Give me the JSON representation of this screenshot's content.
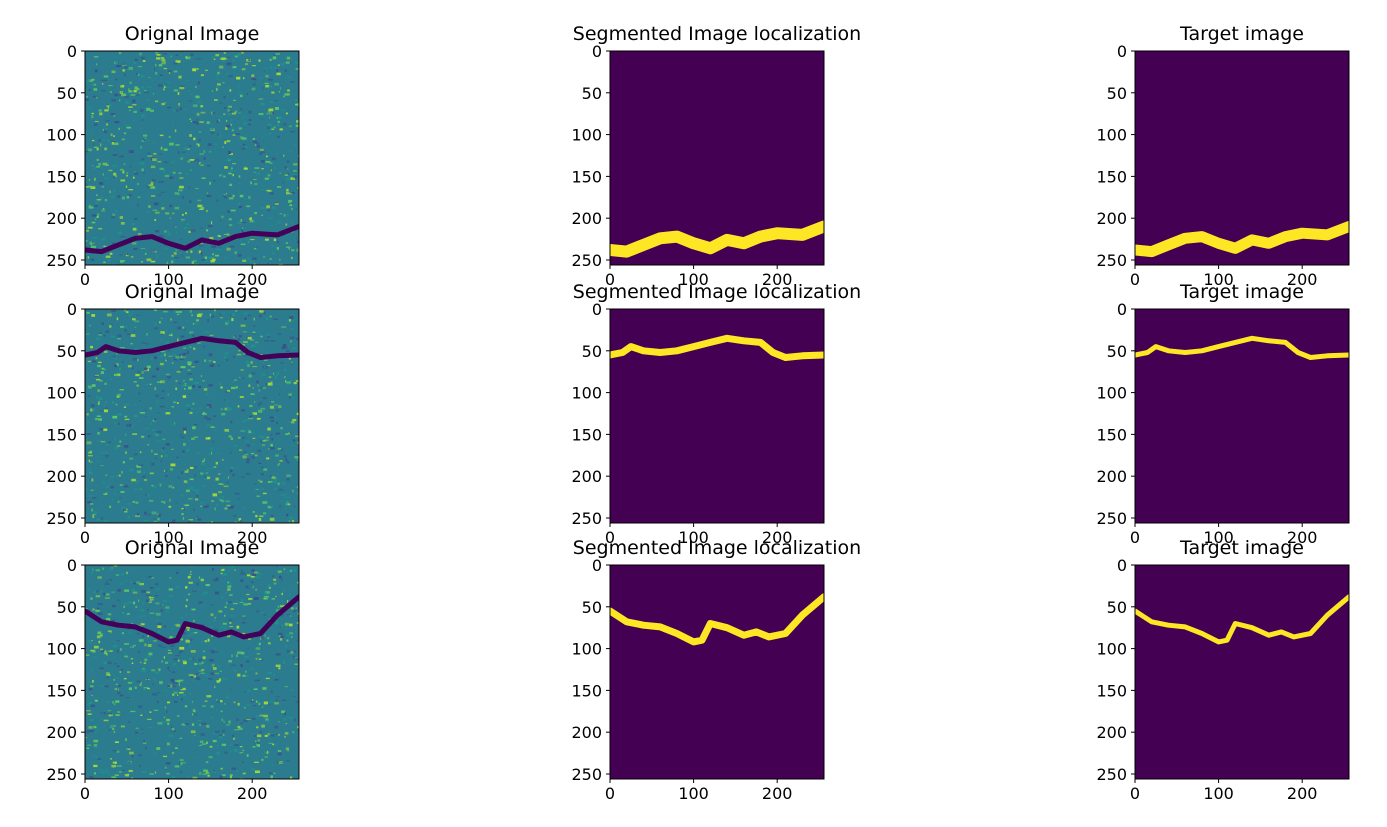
{
  "figure": {
    "rows": [
      {
        "panels": [
          {
            "kind": "original",
            "title": "Orignal Image"
          },
          {
            "kind": "mask",
            "title": "Segmented Image localization"
          },
          {
            "kind": "mask",
            "title": "Target image"
          }
        ]
      },
      {
        "panels": [
          {
            "kind": "original",
            "title": "Orignal Image"
          },
          {
            "kind": "mask",
            "title": "Segmented Image localization"
          },
          {
            "kind": "mask",
            "title": "Target image"
          }
        ]
      },
      {
        "panels": [
          {
            "kind": "original",
            "title": "Orignal Image"
          },
          {
            "kind": "mask",
            "title": "Segmented Image localization"
          },
          {
            "kind": "mask",
            "title": "Target image"
          }
        ]
      }
    ],
    "axes": {
      "x_ticks": [
        "0",
        "100",
        "200"
      ],
      "y_ticks": [
        "0",
        "50",
        "100",
        "150",
        "200",
        "250"
      ],
      "xlim": [
        0,
        256
      ],
      "ylim": [
        256,
        0
      ]
    },
    "colors": {
      "background": "#440154",
      "crack": "#fde725",
      "texture": [
        "#3b528b",
        "#21918c",
        "#5ec962",
        "#a8db34"
      ],
      "dark_crack": "#44015a"
    },
    "crack_paths": [
      [
        [
          0,
          238
        ],
        [
          20,
          240
        ],
        [
          40,
          232
        ],
        [
          60,
          224
        ],
        [
          80,
          222
        ],
        [
          100,
          230
        ],
        [
          120,
          236
        ],
        [
          140,
          226
        ],
        [
          160,
          230
        ],
        [
          180,
          222
        ],
        [
          200,
          218
        ],
        [
          230,
          220
        ],
        [
          256,
          210
        ]
      ],
      [
        [
          0,
          55
        ],
        [
          15,
          52
        ],
        [
          25,
          45
        ],
        [
          40,
          50
        ],
        [
          60,
          52
        ],
        [
          80,
          50
        ],
        [
          100,
          45
        ],
        [
          120,
          40
        ],
        [
          140,
          35
        ],
        [
          160,
          38
        ],
        [
          180,
          40
        ],
        [
          195,
          52
        ],
        [
          210,
          58
        ],
        [
          230,
          56
        ],
        [
          256,
          55
        ]
      ],
      [
        [
          0,
          55
        ],
        [
          20,
          68
        ],
        [
          40,
          72
        ],
        [
          60,
          74
        ],
        [
          80,
          82
        ],
        [
          100,
          92
        ],
        [
          110,
          90
        ],
        [
          120,
          70
        ],
        [
          140,
          75
        ],
        [
          160,
          84
        ],
        [
          175,
          80
        ],
        [
          190,
          86
        ],
        [
          210,
          82
        ],
        [
          230,
          60
        ],
        [
          256,
          38
        ]
      ]
    ]
  }
}
